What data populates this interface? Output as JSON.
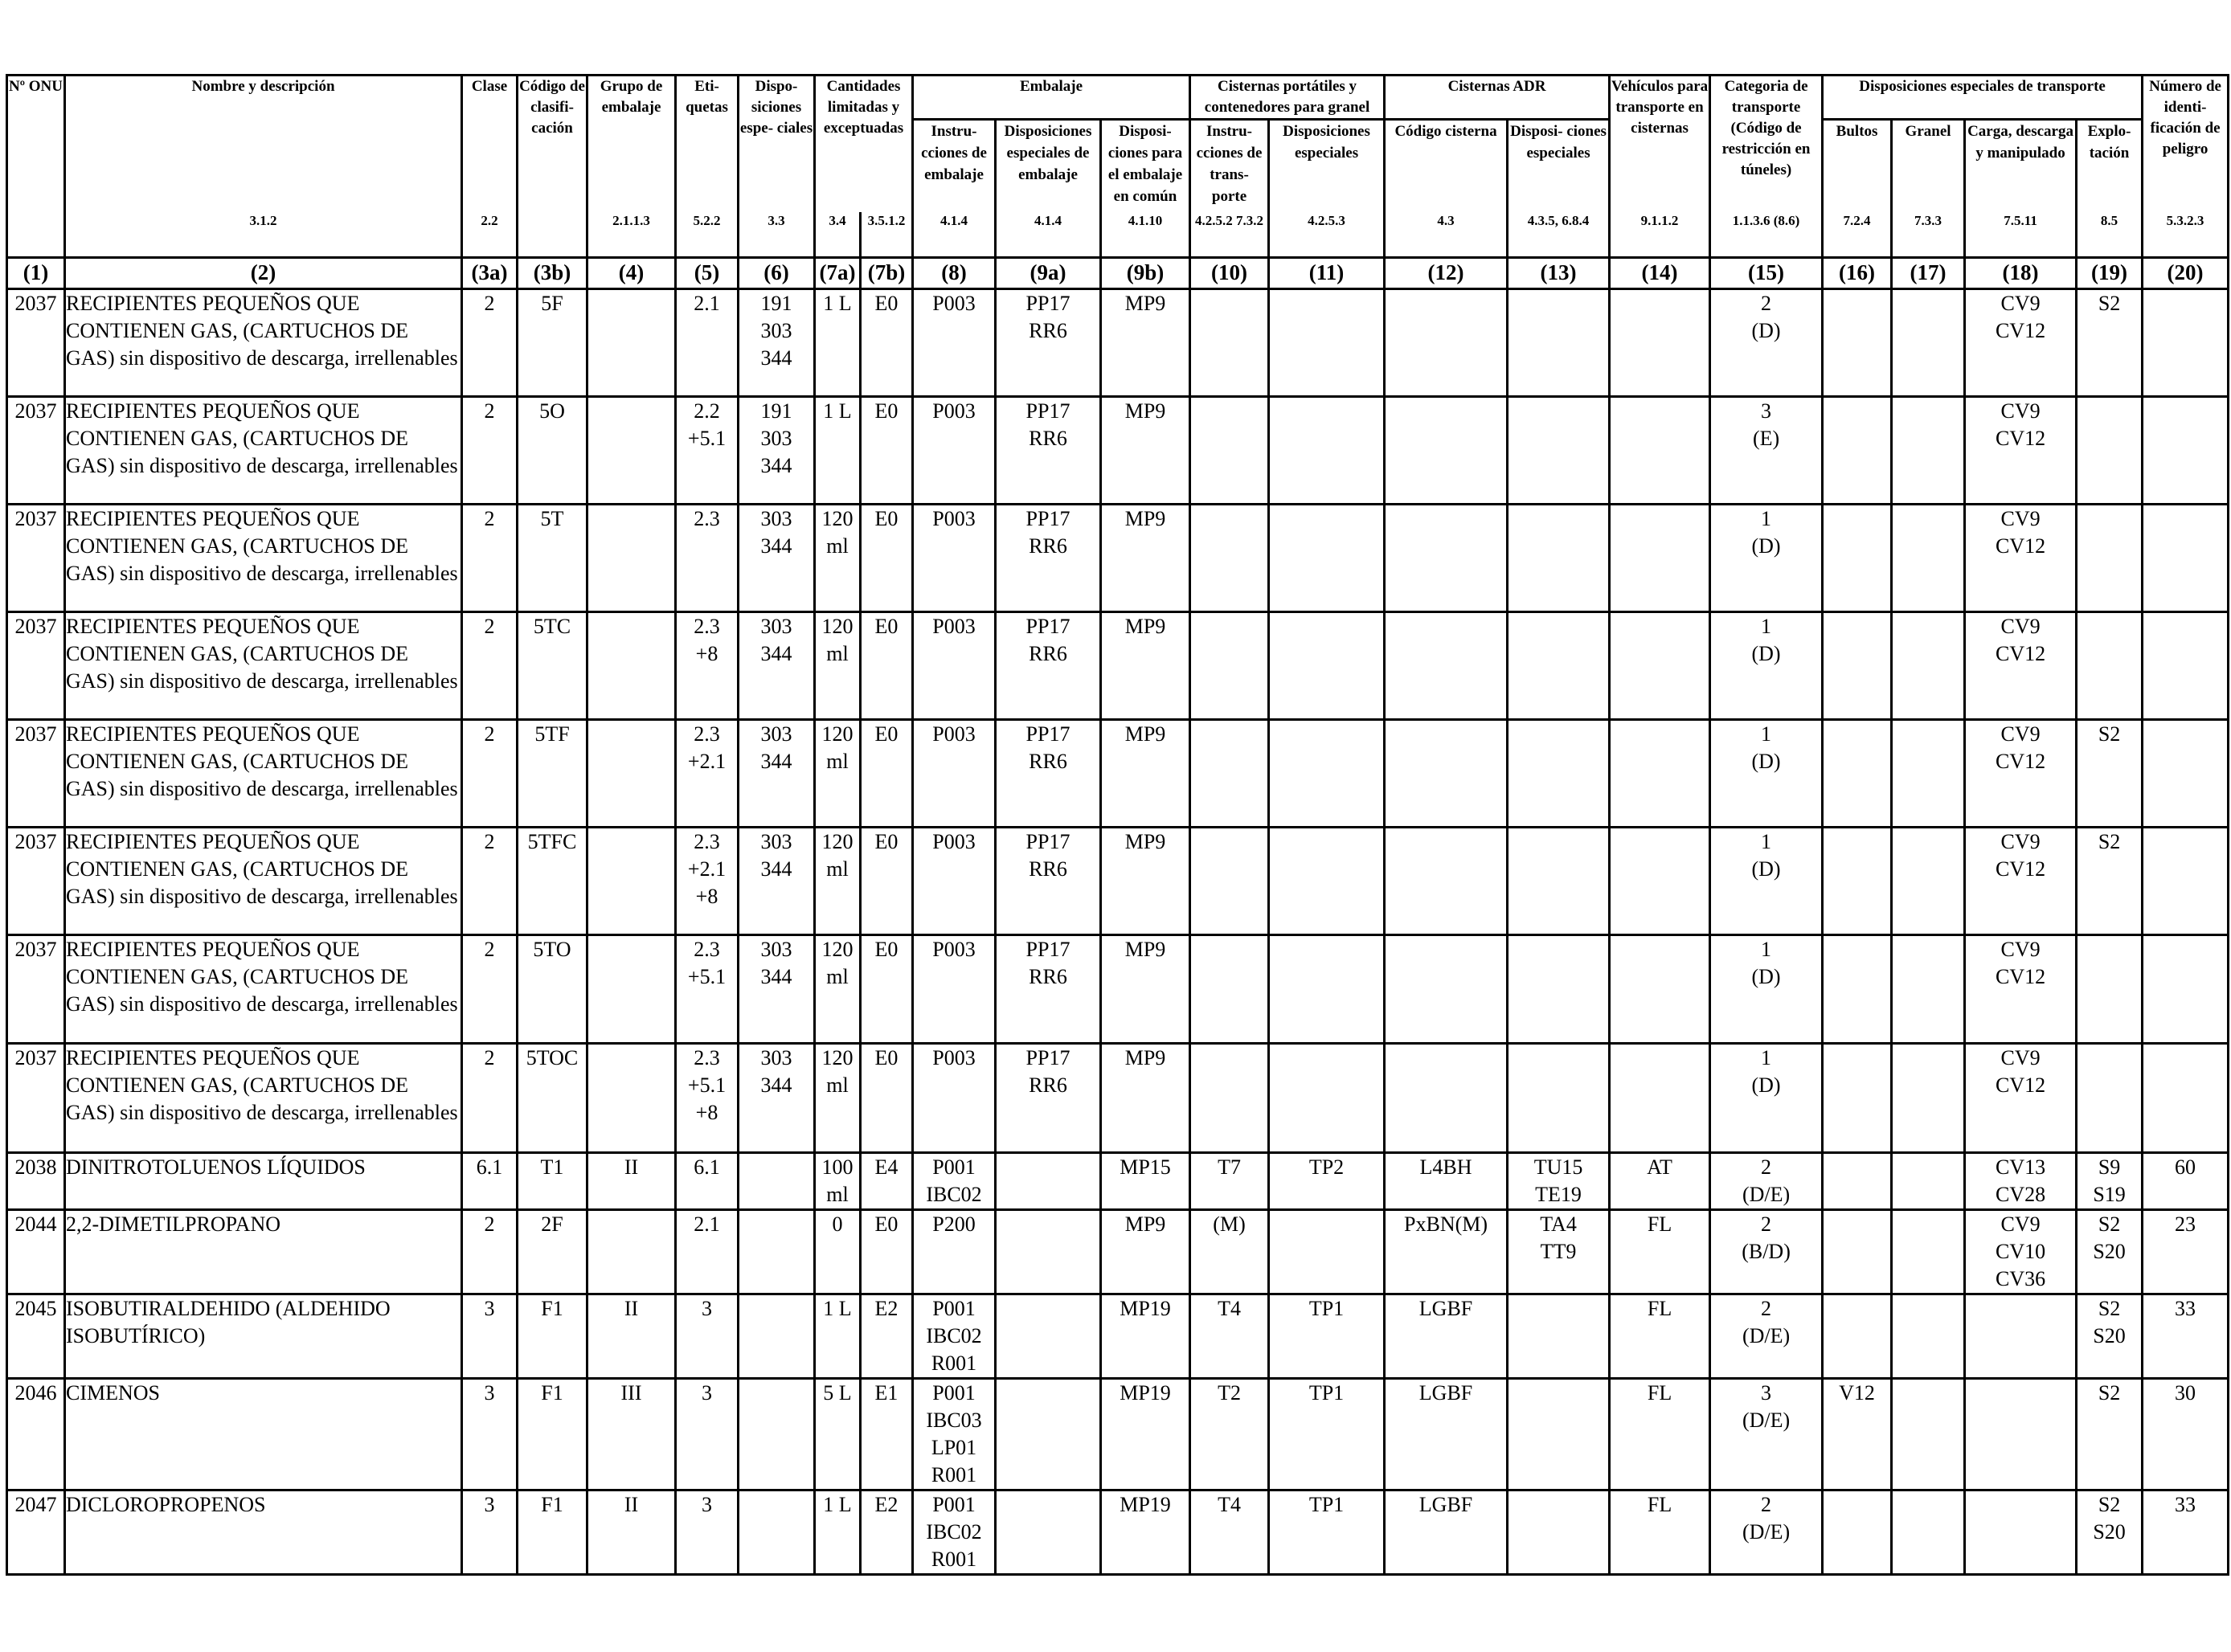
{
  "header": {
    "un_no": "Nº ONU",
    "name": "Nombre y descripción",
    "class": "Clase",
    "class_code": "Código de clasifi- cación",
    "packing_group": "Grupo de embalaje",
    "labels": "Eti- quetas",
    "special_provisions": "Dispo- siciones espe- ciales",
    "limited_quantities": "Cantidades limitadas y exceptuadas",
    "packaging": "Embalaje",
    "packing_instructions": "Instru- cciones de embalaje",
    "special_packing": "Disposiciones especiales de embalaje",
    "mixed_packing": "Disposi- ciones para el embalaje en común",
    "portable_tanks": "Cisternas portátiles y contenedores para granel",
    "pt_instructions": "Instru- cciones de trans- porte",
    "pt_special": "Disposiciones especiales",
    "adr_tanks": "Cisternas ADR",
    "tank_code": "Código cisterna",
    "tank_special": "Disposi- ciones especiales",
    "vehicle": "Vehículos para transporte en cisternas",
    "transport_category": "Categoria de transporte (Código de restricción en túneles)",
    "special_transport": "Disposiciones especiales de transporte",
    "packages": "Bultos",
    "bulk": "Granel",
    "loading": "Carga, descarga y manipulado",
    "operation": "Explo- tación",
    "hazard_id": "Número de identi- ficación de peligro"
  },
  "refs": [
    "",
    "3.1.2",
    "2.2",
    "",
    "2.1.1.3",
    "5.2.2",
    "3.3",
    "3.4",
    "3.5.1.2",
    "4.1.4",
    "4.1.4",
    "4.1.10",
    "4.2.5.2 7.3.2",
    "4.2.5.3",
    "4.3",
    "4.3.5, 6.8.4",
    "9.1.1.2",
    "1.1.3.6 (8.6)",
    "7.2.4",
    "7.3.3",
    "7.5.11",
    "8.5",
    "5.3.2.3"
  ],
  "column_numbers": [
    "(1)",
    "(2)",
    "(3a)",
    "(3b)",
    "(4)",
    "(5)",
    "(6)",
    "(7a)",
    "(7b)",
    "(8)",
    "(9a)",
    "(9b)",
    "(10)",
    "(11)",
    "(12)",
    "(13)",
    "(14)",
    "(15)",
    "(16)",
    "(17)",
    "(18)",
    "(19)",
    "(20)"
  ],
  "rows": [
    [
      "2037",
      "RECIPIENTES PEQUEÑOS QUE CONTIENEN GAS, (CARTUCHOS DE GAS) sin dispositivo de descarga, irrellenables",
      "2",
      "5F",
      "",
      "2.1",
      "191\n303\n344",
      "1 L",
      "E0",
      "P003",
      "PP17\nRR6",
      "MP9",
      "",
      "",
      "",
      "",
      "",
      "2\n(D)",
      "",
      "",
      "CV9\nCV12",
      "S2",
      ""
    ],
    [
      "2037",
      "RECIPIENTES PEQUEÑOS QUE CONTIENEN GAS, (CARTUCHOS DE GAS) sin dispositivo de descarga, irrellenables",
      "2",
      "5O",
      "",
      "2.2\n+5.1",
      "191\n303\n344",
      "1 L",
      "E0",
      "P003",
      "PP17\nRR6",
      "MP9",
      "",
      "",
      "",
      "",
      "",
      "3\n(E)",
      "",
      "",
      "CV9\nCV12",
      "",
      ""
    ],
    [
      "2037",
      "RECIPIENTES PEQUEÑOS QUE CONTIENEN GAS, (CARTUCHOS DE GAS) sin dispositivo de descarga, irrellenables",
      "2",
      "5T",
      "",
      "2.3",
      "303\n344",
      "120\nml",
      "E0",
      "P003",
      "PP17\nRR6",
      "MP9",
      "",
      "",
      "",
      "",
      "",
      "1\n(D)",
      "",
      "",
      "CV9\nCV12",
      "",
      ""
    ],
    [
      "2037",
      "RECIPIENTES PEQUEÑOS QUE CONTIENEN GAS, (CARTUCHOS DE GAS) sin dispositivo de descarga, irrellenables",
      "2",
      "5TC",
      "",
      "2.3\n+8",
      "303\n344",
      "120\nml",
      "E0",
      "P003",
      "PP17\nRR6",
      "MP9",
      "",
      "",
      "",
      "",
      "",
      "1\n(D)",
      "",
      "",
      "CV9\nCV12",
      "",
      ""
    ],
    [
      "2037",
      "RECIPIENTES PEQUEÑOS QUE CONTIENEN GAS, (CARTUCHOS DE GAS) sin dispositivo de descarga, irrellenables",
      "2",
      "5TF",
      "",
      "2.3\n+2.1",
      "303\n344",
      "120\nml",
      "E0",
      "P003",
      "PP17\nRR6",
      "MP9",
      "",
      "",
      "",
      "",
      "",
      "1\n(D)",
      "",
      "",
      "CV9\nCV12",
      "S2",
      ""
    ],
    [
      "2037",
      "RECIPIENTES PEQUEÑOS QUE CONTIENEN GAS, (CARTUCHOS DE GAS) sin dispositivo de descarga, irrellenables",
      "2",
      "5TFC",
      "",
      "2.3\n+2.1\n+8",
      "303\n344",
      "120\nml",
      "E0",
      "P003",
      "PP17\nRR6",
      "MP9",
      "",
      "",
      "",
      "",
      "",
      "1\n(D)",
      "",
      "",
      "CV9\nCV12",
      "S2",
      ""
    ],
    [
      "2037",
      "RECIPIENTES PEQUEÑOS QUE CONTIENEN GAS, (CARTUCHOS DE GAS) sin dispositivo de descarga, irrellenables",
      "2",
      "5TO",
      "",
      "2.3\n+5.1",
      "303\n344",
      "120\nml",
      "E0",
      "P003",
      "PP17\nRR6",
      "MP9",
      "",
      "",
      "",
      "",
      "",
      "1\n(D)",
      "",
      "",
      "CV9\nCV12",
      "",
      ""
    ],
    [
      "2037",
      "RECIPIENTES PEQUEÑOS QUE CONTIENEN GAS, (CARTUCHOS DE GAS) sin dispositivo de descarga, irrellenables",
      "2",
      "5TOC",
      "",
      "2.3\n+5.1\n+8",
      "303\n344",
      "120\nml",
      "E0",
      "P003",
      "PP17\nRR6",
      "MP9",
      "",
      "",
      "",
      "",
      "",
      "1\n(D)",
      "",
      "",
      "CV9\nCV12",
      "",
      ""
    ],
    [
      "2038",
      "DINITROTOLUENOS LÍQUIDOS",
      "6.1",
      "T1",
      "II",
      "6.1",
      "",
      "100\nml",
      "E4",
      "P001\nIBC02",
      "",
      "MP15",
      "T7",
      "TP2",
      "L4BH",
      "TU15\nTE19",
      "AT",
      "2\n(D/E)",
      "",
      "",
      "CV13\nCV28",
      "S9\nS19",
      "60"
    ],
    [
      "2044",
      "2,2-DIMETILPROPANO",
      "2",
      "2F",
      "",
      "2.1",
      "",
      "0",
      "E0",
      "P200",
      "",
      "MP9",
      "(M)",
      "",
      "PxBN(M)",
      "TA4\nTT9",
      "FL",
      "2\n(B/D)",
      "",
      "",
      "CV9\nCV10\nCV36",
      "S2\nS20",
      "23"
    ],
    [
      "2045",
      "ISOBUTIRALDEHIDO (ALDEHIDO ISOBUTÍRICO)",
      "3",
      "F1",
      "II",
      "3",
      "",
      "1 L",
      "E2",
      "P001\nIBC02\nR001",
      "",
      "MP19",
      "T4",
      "TP1",
      "LGBF",
      "",
      "FL",
      "2\n(D/E)",
      "",
      "",
      "",
      "S2\nS20",
      "33"
    ],
    [
      "2046",
      "CIMENOS",
      "3",
      "F1",
      "III",
      "3",
      "",
      "5 L",
      "E1",
      "P001\nIBC03\nLP01\nR001",
      "",
      "MP19",
      "T2",
      "TP1",
      "LGBF",
      "",
      "FL",
      "3\n(D/E)",
      "V12",
      "",
      "",
      "S2",
      "30"
    ],
    [
      "2047",
      "DICLOROPROPENOS",
      "3",
      "F1",
      "II",
      "3",
      "",
      "1 L",
      "E2",
      "P001\nIBC02\nR001",
      "",
      "MP19",
      "T4",
      "TP1",
      "LGBF",
      "",
      "FL",
      "2\n(D/E)",
      "",
      "",
      "",
      "S2\nS20",
      "33"
    ]
  ]
}
